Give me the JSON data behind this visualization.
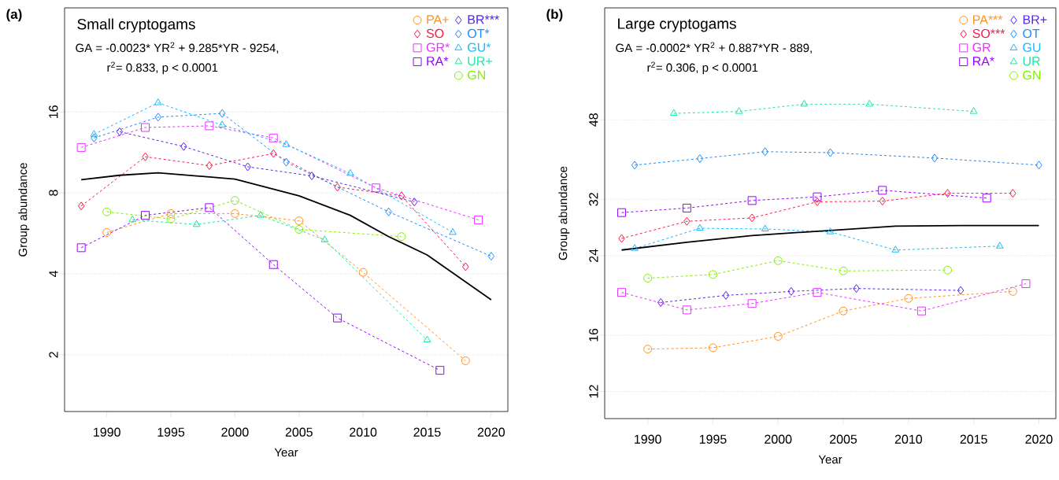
{
  "chart_data": [
    {
      "type": "line",
      "title": "(a)",
      "subtitle": "Small cryptogams",
      "annotations": [
        "GA = -0.0023* YR$^{2}$ + 9.285*YR - 9254,",
        "r$^{2}$= 0.833, p < 0.0001"
      ],
      "xlabel": "Year",
      "ylabel": "Group abundance",
      "xlim": [
        1986.7,
        2021.3
      ],
      "ylim": [
        1.23,
        39
      ],
      "xticks": [
        1990,
        1995,
        2000,
        2005,
        2010,
        2015,
        2020
      ],
      "yticks": [
        2,
        4,
        8,
        16
      ],
      "log": "y",
      "grid": "y",
      "legend": "top right",
      "series": [
        {
          "name": "PA+",
          "color": "#ff8f1f",
          "marker": "circle",
          "line_style": "dashed",
          "x": [
            1990,
            1995,
            2000,
            2005,
            2010,
            2018
          ],
          "values": [
            5.7,
            6.7,
            6.7,
            6.3,
            4.05,
            1.9
          ]
        },
        {
          "name": "SO",
          "color": "#ff1744",
          "marker": "diamond",
          "line_style": "dashed",
          "x": [
            1988,
            1993,
            1998,
            2003,
            2008,
            2013,
            2018
          ],
          "values": [
            7.15,
            10.9,
            10.1,
            11.2,
            8.4,
            7.8,
            4.25
          ]
        },
        {
          "name": "GR*",
          "color": "#e633ff",
          "marker": "square",
          "line_style": "dashed",
          "x": [
            1988,
            1993,
            1998,
            2003,
            2011,
            2019
          ],
          "values": [
            11.8,
            14.0,
            14.2,
            12.8,
            8.35,
            6.35
          ]
        },
        {
          "name": "RA*",
          "color": "#9900ff",
          "marker": "square",
          "line_style": "dashed",
          "x": [
            1988,
            1993,
            1998,
            2003,
            2008,
            2016
          ],
          "values": [
            5.0,
            6.6,
            7.05,
            4.33,
            2.74,
            1.75
          ]
        },
        {
          "name": "BR***",
          "color": "#5522ee",
          "marker": "diamond",
          "line_style": "dashed",
          "x": [
            1991,
            1996,
            2001,
            2006,
            2014
          ],
          "values": [
            13.5,
            11.9,
            10.0,
            9.25,
            7.4
          ]
        },
        {
          "name": "OT*",
          "color": "#1a8cff",
          "marker": "diamond",
          "line_style": "dashed",
          "x": [
            1989,
            1994,
            1999,
            2004,
            2012,
            2020
          ],
          "values": [
            12.8,
            15.3,
            15.8,
            10.4,
            6.8,
            4.65
          ]
        },
        {
          "name": "GU*",
          "color": "#1ab8ff",
          "marker": "triangle",
          "line_style": "dashed",
          "x": [
            1989,
            1994,
            1999,
            2004,
            2009,
            2017
          ],
          "values": [
            13.2,
            17.3,
            14.3,
            12.1,
            9.45,
            5.7
          ]
        },
        {
          "name": "UR+",
          "color": "#19e8a0",
          "marker": "triangle",
          "line_style": "dashed",
          "x": [
            1992,
            1997,
            2002,
            2007,
            2015
          ],
          "values": [
            6.35,
            6.1,
            6.6,
            5.35,
            2.27
          ]
        },
        {
          "name": "GN",
          "color": "#80ee00",
          "marker": "circle",
          "line_style": "dashed",
          "x": [
            1990,
            1995,
            2000,
            2005,
            2013
          ],
          "values": [
            6.8,
            6.4,
            7.5,
            5.85,
            5.5
          ]
        },
        {
          "color": "#000000",
          "marker": "none",
          "line_style": "solid",
          "x": [
            1988,
            1991,
            1994,
            2000,
            2005,
            2009,
            2012,
            2015,
            2020
          ],
          "values": [
            8.95,
            9.3,
            9.5,
            9.0,
            7.8,
            6.6,
            5.5,
            4.7,
            3.2
          ]
        }
      ]
    },
    {
      "type": "line",
      "title": "(b)",
      "subtitle": "Large cryptogams",
      "annotations": [
        "GA = -0.0002* YR$^{2}$ + 0.887*YR - 889,",
        "r$^{2}$= 0.306, p < 0.0001"
      ],
      "xlabel": "Year",
      "ylabel": "Group abundance",
      "xlim": [
        1986.7,
        2021.3
      ],
      "ylim": [
        10.45,
        85
      ],
      "xticks": [
        1990,
        1995,
        2000,
        2005,
        2010,
        2015,
        2020
      ],
      "yticks": [
        12,
        16,
        24,
        32,
        48
      ],
      "log": "y",
      "grid": "y",
      "legend": "top right",
      "series": [
        {
          "name": "PA***",
          "color": "#ff8f1f",
          "marker": "circle",
          "line_style": "dashed",
          "x": [
            1990,
            1995,
            2000,
            2005,
            2010,
            2018
          ],
          "values": [
            14.9,
            15.0,
            15.9,
            18.1,
            19.3,
            20.0
          ]
        },
        {
          "name": "SO***",
          "color": "#ff1744",
          "marker": "diamond",
          "line_style": "dashed",
          "x": [
            1988,
            1993,
            1998,
            2003,
            2008,
            2013,
            2018
          ],
          "values": [
            26.2,
            28.6,
            29.1,
            31.6,
            31.7,
            33.0,
            33.0
          ]
        },
        {
          "name": "GR",
          "color": "#e633ff",
          "marker": "square",
          "line_style": "dashed",
          "x": [
            1988,
            1993,
            1998,
            2003,
            2011,
            2019
          ],
          "values": [
            19.9,
            18.2,
            18.8,
            19.9,
            18.1,
            20.8
          ]
        },
        {
          "name": "RA*",
          "color": "#9900ff",
          "marker": "square",
          "line_style": "dashed",
          "x": [
            1988,
            1993,
            1998,
            2003,
            2008,
            2016
          ],
          "values": [
            29.9,
            30.6,
            31.8,
            32.4,
            33.5,
            32.2
          ]
        },
        {
          "name": "BR+",
          "color": "#5522ee",
          "marker": "diamond",
          "line_style": "dashed",
          "x": [
            1991,
            1996,
            2001,
            2006,
            2014
          ],
          "values": [
            18.9,
            19.6,
            20.0,
            20.3,
            20.1
          ]
        },
        {
          "name": "OT",
          "color": "#1a8cff",
          "marker": "diamond",
          "line_style": "dashed",
          "x": [
            1989,
            1994,
            1999,
            2004,
            2012,
            2020
          ],
          "values": [
            38.1,
            39.4,
            40.8,
            40.6,
            39.5,
            38.1
          ]
        },
        {
          "name": "GU",
          "color": "#1ab8ff",
          "marker": "triangle",
          "line_style": "dashed",
          "x": [
            1989,
            1994,
            1999,
            2004,
            2009,
            2017
          ],
          "values": [
            24.9,
            27.6,
            27.5,
            27.1,
            24.7,
            25.2
          ]
        },
        {
          "name": "UR",
          "color": "#19e8a0",
          "marker": "triangle",
          "line_style": "dashed",
          "x": [
            1992,
            1997,
            2002,
            2007,
            2015
          ],
          "values": [
            49.6,
            50.1,
            52.0,
            52.0,
            50.1
          ]
        },
        {
          "name": "GN",
          "color": "#80ee00",
          "marker": "circle",
          "line_style": "dashed",
          "x": [
            1990,
            1995,
            2000,
            2005,
            2013
          ],
          "values": [
            21.4,
            21.8,
            23.4,
            22.2,
            22.3
          ]
        },
        {
          "color": "#000000",
          "marker": "none",
          "line_style": "solid",
          "x": [
            1988,
            1993,
            1998,
            2004,
            2009,
            2014,
            2020
          ],
          "values": [
            24.7,
            25.7,
            26.6,
            27.3,
            27.9,
            28.0,
            28.0
          ]
        }
      ]
    }
  ]
}
